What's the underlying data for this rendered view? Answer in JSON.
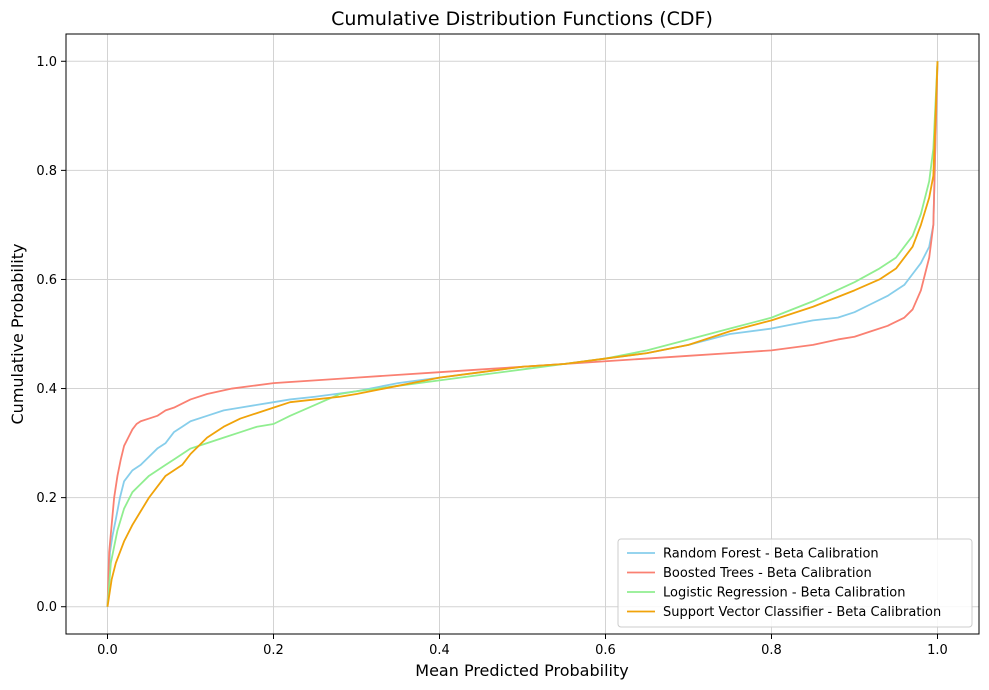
{
  "chart_data": {
    "type": "line",
    "title": "Cumulative Distribution Functions (CDF)",
    "xlabel": "Mean Predicted Probability",
    "ylabel": "Cumulative Probability",
    "xlim": [
      -0.05,
      1.05
    ],
    "ylim": [
      -0.05,
      1.05
    ],
    "xticks": [
      "0.0",
      "0.2",
      "0.4",
      "0.6",
      "0.8",
      "1.0"
    ],
    "yticks": [
      "0.0",
      "0.2",
      "0.4",
      "0.6",
      "0.8",
      "1.0"
    ],
    "grid": true,
    "legend_position": "lower-right",
    "series": [
      {
        "name": "Random Forest - Beta Calibration",
        "color": "#87ceeb",
        "x": [
          0,
          0.003,
          0.006,
          0.01,
          0.015,
          0.02,
          0.025,
          0.03,
          0.04,
          0.05,
          0.06,
          0.07,
          0.08,
          0.09,
          0.1,
          0.12,
          0.14,
          0.16,
          0.18,
          0.2,
          0.22,
          0.25,
          0.3,
          0.35,
          0.4,
          0.45,
          0.5,
          0.55,
          0.6,
          0.65,
          0.7,
          0.75,
          0.8,
          0.85,
          0.88,
          0.9,
          0.92,
          0.94,
          0.96,
          0.97,
          0.98,
          0.99,
          0.995,
          1.0
        ],
        "y": [
          0.0,
          0.1,
          0.13,
          0.16,
          0.2,
          0.23,
          0.24,
          0.25,
          0.26,
          0.275,
          0.29,
          0.3,
          0.32,
          0.33,
          0.34,
          0.35,
          0.36,
          0.365,
          0.37,
          0.375,
          0.38,
          0.385,
          0.395,
          0.41,
          0.42,
          0.43,
          0.44,
          0.445,
          0.455,
          0.465,
          0.48,
          0.5,
          0.51,
          0.525,
          0.53,
          0.54,
          0.555,
          0.57,
          0.59,
          0.61,
          0.63,
          0.66,
          0.7,
          1.0
        ]
      },
      {
        "name": "Boosted Trees - Beta Calibration",
        "color": "#fa8072",
        "x": [
          0,
          0.002,
          0.005,
          0.008,
          0.012,
          0.016,
          0.02,
          0.025,
          0.03,
          0.035,
          0.04,
          0.05,
          0.06,
          0.07,
          0.08,
          0.1,
          0.12,
          0.15,
          0.2,
          0.25,
          0.3,
          0.35,
          0.4,
          0.45,
          0.5,
          0.55,
          0.6,
          0.65,
          0.7,
          0.75,
          0.8,
          0.85,
          0.88,
          0.9,
          0.92,
          0.94,
          0.96,
          0.97,
          0.98,
          0.99,
          0.995,
          1.0
        ],
        "y": [
          0.0,
          0.1,
          0.15,
          0.2,
          0.24,
          0.27,
          0.295,
          0.31,
          0.325,
          0.335,
          0.34,
          0.345,
          0.35,
          0.36,
          0.365,
          0.38,
          0.39,
          0.4,
          0.41,
          0.415,
          0.42,
          0.425,
          0.43,
          0.435,
          0.44,
          0.445,
          0.45,
          0.455,
          0.46,
          0.465,
          0.47,
          0.48,
          0.49,
          0.495,
          0.505,
          0.515,
          0.53,
          0.545,
          0.58,
          0.64,
          0.7,
          1.0
        ]
      },
      {
        "name": "Logistic Regression - Beta Calibration",
        "color": "#90ee90",
        "x": [
          0,
          0.004,
          0.008,
          0.012,
          0.016,
          0.02,
          0.025,
          0.03,
          0.04,
          0.05,
          0.06,
          0.07,
          0.08,
          0.09,
          0.1,
          0.12,
          0.14,
          0.16,
          0.18,
          0.2,
          0.22,
          0.25,
          0.28,
          0.3,
          0.35,
          0.4,
          0.45,
          0.5,
          0.55,
          0.6,
          0.65,
          0.7,
          0.75,
          0.8,
          0.85,
          0.9,
          0.93,
          0.95,
          0.97,
          0.98,
          0.99,
          0.995,
          1.0
        ],
        "y": [
          0.0,
          0.08,
          0.11,
          0.14,
          0.16,
          0.18,
          0.195,
          0.21,
          0.225,
          0.24,
          0.25,
          0.26,
          0.27,
          0.28,
          0.29,
          0.3,
          0.31,
          0.32,
          0.33,
          0.335,
          0.35,
          0.37,
          0.39,
          0.395,
          0.405,
          0.415,
          0.425,
          0.435,
          0.445,
          0.455,
          0.47,
          0.49,
          0.51,
          0.53,
          0.56,
          0.595,
          0.62,
          0.64,
          0.68,
          0.72,
          0.78,
          0.84,
          1.0
        ]
      },
      {
        "name": "Support Vector Classifier - Beta Calibration",
        "color": "#f0a30a",
        "x": [
          0,
          0.005,
          0.01,
          0.015,
          0.02,
          0.03,
          0.04,
          0.05,
          0.06,
          0.07,
          0.08,
          0.09,
          0.1,
          0.12,
          0.14,
          0.16,
          0.18,
          0.2,
          0.22,
          0.25,
          0.28,
          0.3,
          0.35,
          0.4,
          0.45,
          0.5,
          0.55,
          0.6,
          0.65,
          0.7,
          0.75,
          0.8,
          0.85,
          0.9,
          0.93,
          0.95,
          0.97,
          0.98,
          0.99,
          0.995,
          1.0
        ],
        "y": [
          0.0,
          0.05,
          0.08,
          0.1,
          0.12,
          0.15,
          0.175,
          0.2,
          0.22,
          0.24,
          0.25,
          0.26,
          0.28,
          0.31,
          0.33,
          0.345,
          0.355,
          0.365,
          0.375,
          0.38,
          0.385,
          0.39,
          0.405,
          0.42,
          0.43,
          0.44,
          0.445,
          0.455,
          0.465,
          0.48,
          0.505,
          0.525,
          0.55,
          0.58,
          0.6,
          0.62,
          0.66,
          0.7,
          0.75,
          0.79,
          1.0
        ]
      }
    ]
  }
}
